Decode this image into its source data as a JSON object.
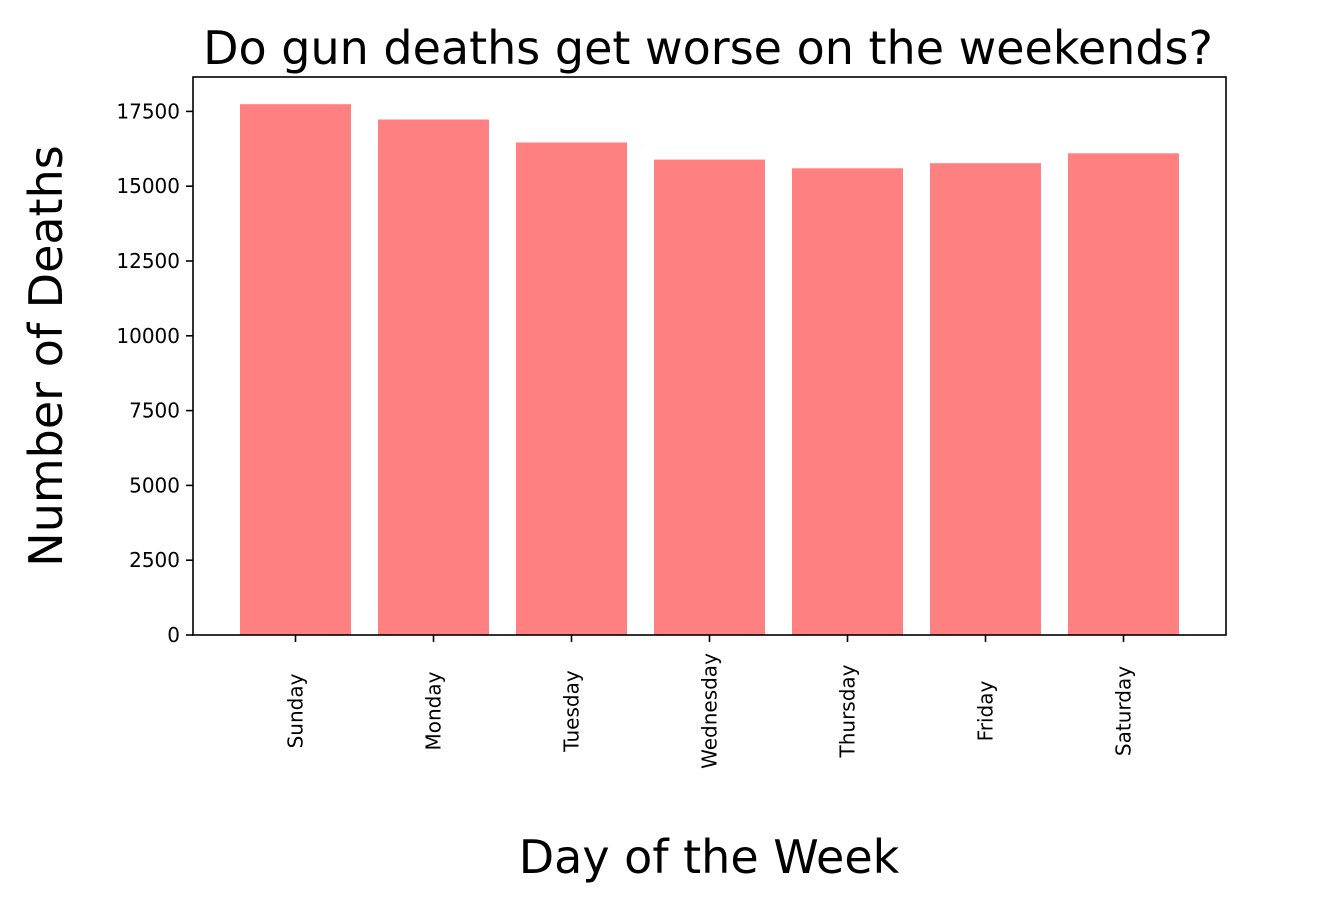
{
  "chart_data": {
    "type": "bar",
    "title": "Do gun deaths get worse on the weekends?",
    "xlabel": "Day of the Week",
    "ylabel": "Number of Deaths",
    "categories": [
      "Sunday",
      "Monday",
      "Tuesday",
      "Wednesday",
      "Thursday",
      "Friday",
      "Saturday"
    ],
    "values": [
      17740,
      17230,
      16460,
      15890,
      15600,
      15770,
      16100
    ],
    "ylim": [
      0,
      18650
    ],
    "yticks": [
      0,
      2500,
      5000,
      7500,
      10000,
      12500,
      15000,
      17500
    ],
    "bar_color": "#ff8080",
    "grid": false,
    "legend": "none"
  }
}
